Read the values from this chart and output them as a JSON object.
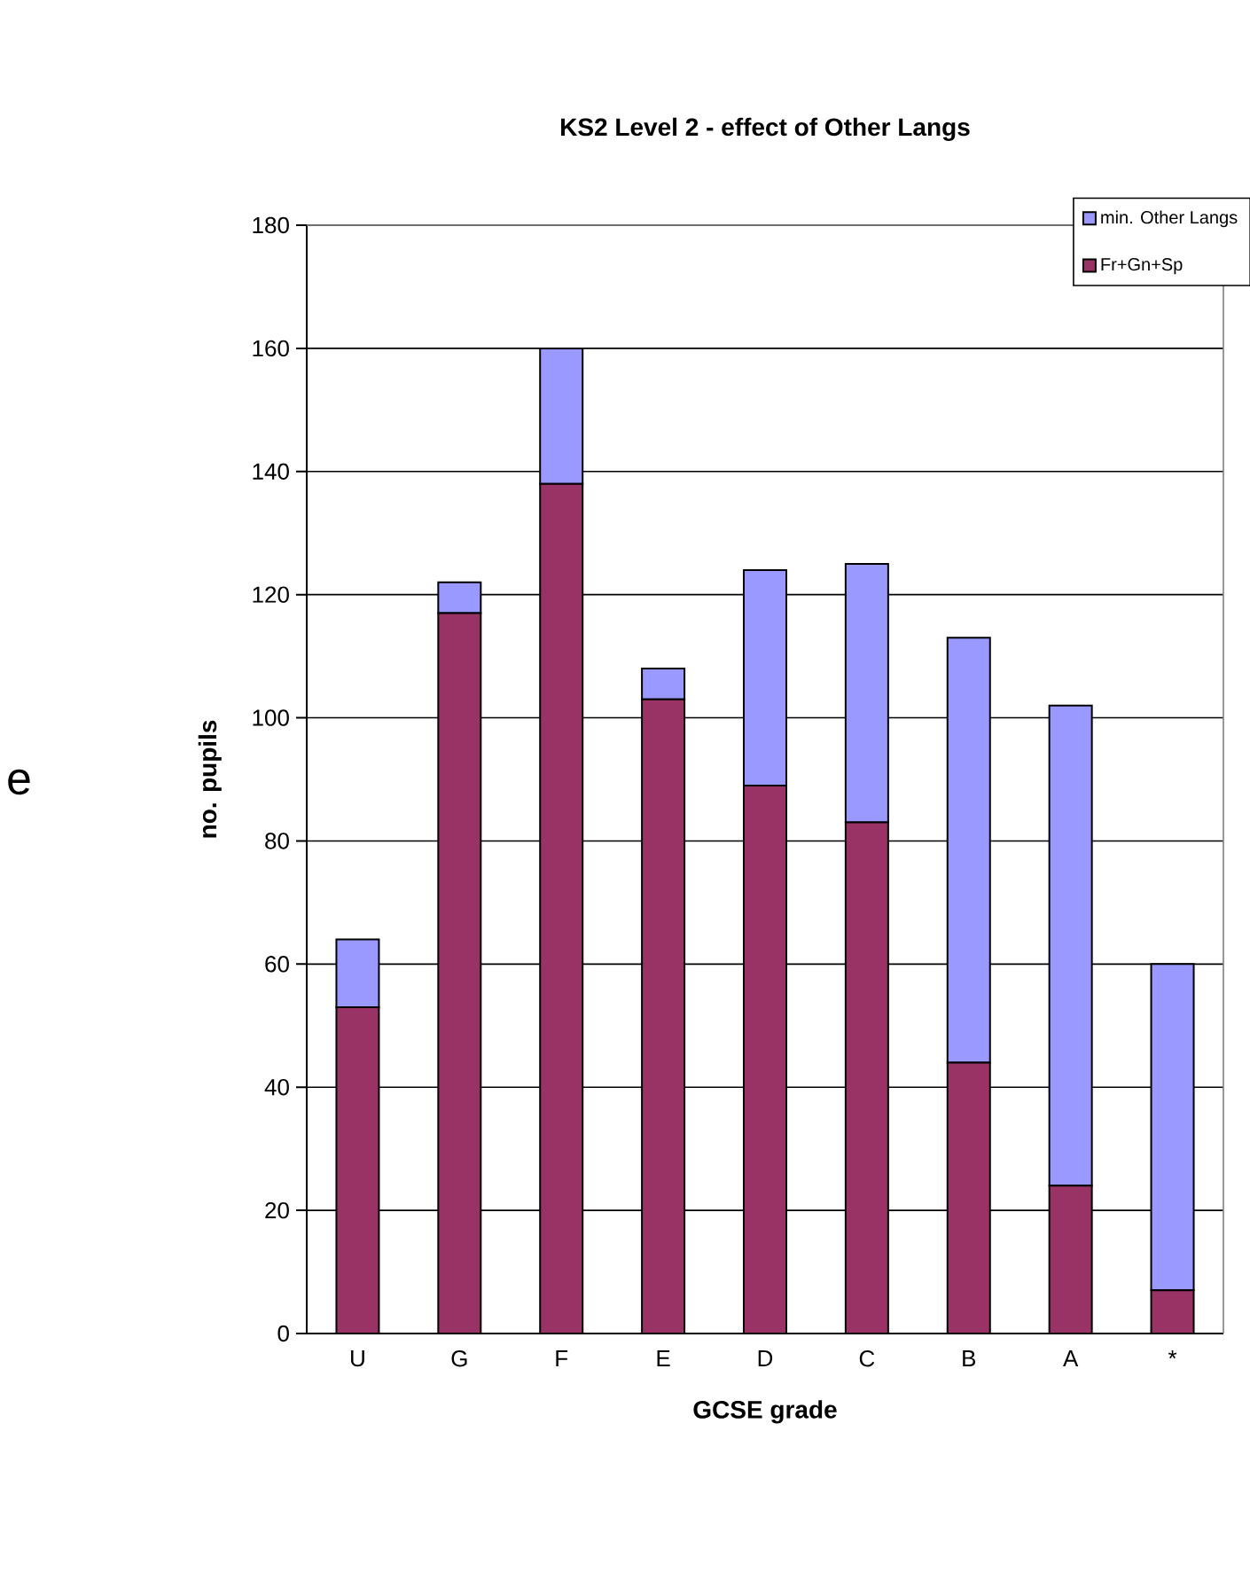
{
  "chart_data": {
    "type": "bar",
    "title": "KS2 Level 2 - effect of Other Langs",
    "xlabel": "GCSE grade",
    "ylabel": "no. pupils",
    "categories": [
      "U",
      "G",
      "F",
      "E",
      "D",
      "C",
      "B",
      "A",
      "*"
    ],
    "series": [
      {
        "name": "Fr+Gn+Sp",
        "color": "#993366",
        "values": [
          53,
          117,
          138,
          103,
          89,
          83,
          44,
          24,
          7
        ]
      },
      {
        "name": "min. Other Langs",
        "color": "#9999ff",
        "values": [
          11,
          5,
          22,
          5,
          35,
          42,
          69,
          78,
          53
        ]
      }
    ],
    "stacked": true,
    "ylim": [
      0,
      180
    ],
    "yticks": [
      0,
      20,
      40,
      60,
      80,
      100,
      120,
      140,
      160,
      180
    ],
    "grid": "y",
    "legend": "top right",
    "annotations": [
      "e"
    ]
  }
}
